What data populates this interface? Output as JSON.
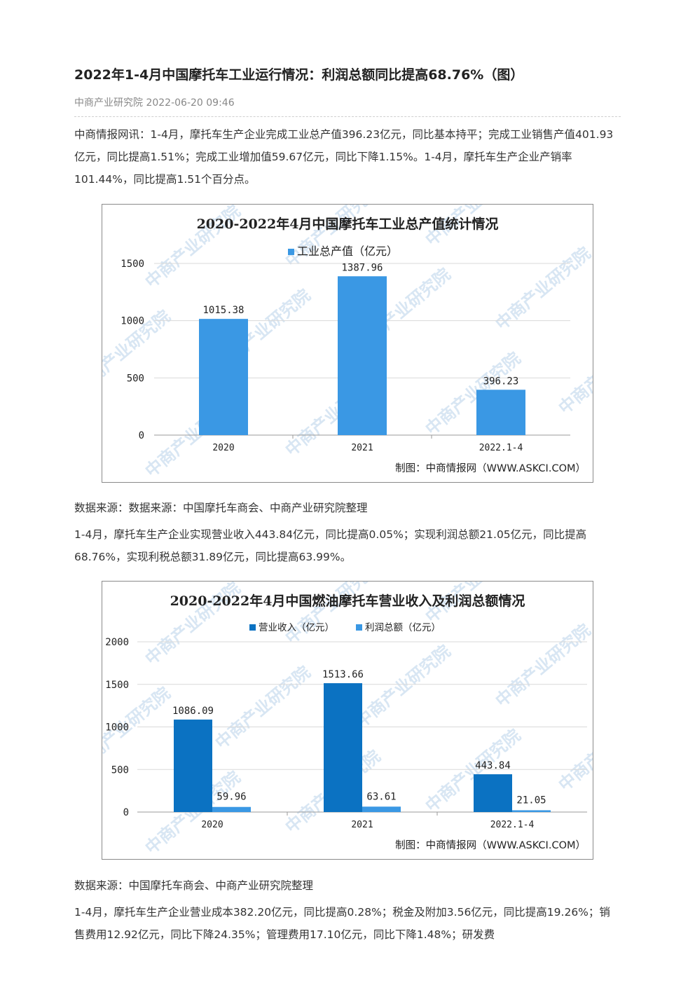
{
  "article": {
    "title": "2022年1-4月中国摩托车工业运行情况：利润总额同比提高68.76%（图）",
    "meta": "中商产业研究院 2022-06-20 09:46",
    "para1": "中商情报网讯：1-4月，摩托车生产企业完成工业总产值396.23亿元，同比基本持平；完成工业销售产值401.93亿元，同比提高1.51%；完成工业增加值59.67亿元，同比下降1.15%。1-4月，摩托车生产企业产销率101.44%，同比提高1.51个百分点。",
    "source1": "数据来源：数据来源：中国摩托车商会、中商产业研究院整理",
    "para2": "1-4月，摩托车生产企业实现营业收入443.84亿元，同比提高0.05%；实现利润总额21.05亿元，同比提高68.76%，实现利税总额31.89亿元，同比提高63.99%。",
    "source2": "数据来源：中国摩托车商会、中商产业研究院整理",
    "para3": "1-4月，摩托车生产企业营业成本382.20亿元，同比提高0.28%；税金及附加3.56亿元，同比提高19.26%；销售费用12.92亿元，同比下降24.35%；管理费用17.10亿元，同比下降1.48%；研发费"
  },
  "watermark": "中商产业研究院",
  "chart_data": [
    {
      "type": "bar",
      "title": "2020-2022年4月中国摩托车工业总产值统计情况",
      "categories": [
        "2020",
        "2021",
        "2022.1-4"
      ],
      "series": [
        {
          "name": "工业总产值（亿元）",
          "values": [
            1015.38,
            1387.96,
            396.23
          ],
          "labels": [
            "1015.38",
            "1387.96",
            "396.23"
          ],
          "color": "#3a98e4"
        }
      ],
      "yticks": [
        "0",
        "500",
        "1000",
        "1500"
      ],
      "ylim": [
        0,
        1500
      ],
      "grid": true,
      "legend": "top",
      "credit": "制图：中商情报网（WWW.ASKCI.COM）"
    },
    {
      "type": "bar",
      "title": "2020-2022年4月中国燃油摩托车营业收入及利润总额情况",
      "categories": [
        "2020",
        "2021",
        "2022.1-4"
      ],
      "series": [
        {
          "name": "营业收入（亿元）",
          "values": [
            1086.09,
            1513.66,
            443.84
          ],
          "labels": [
            "1086.09",
            "1513.66",
            "443.84"
          ],
          "color": "#0b72c2"
        },
        {
          "name": "利润总额（亿元）",
          "values": [
            59.96,
            63.61,
            21.05
          ],
          "labels": [
            "59.96",
            "63.61",
            "21.05"
          ],
          "color": "#3a98e4"
        }
      ],
      "yticks": [
        "0",
        "500",
        "1000",
        "1500",
        "2000"
      ],
      "ylim": [
        0,
        2000
      ],
      "grid": true,
      "legend": "top",
      "credit": "制图：中商情报网（WWW.ASKCI.COM）"
    }
  ]
}
